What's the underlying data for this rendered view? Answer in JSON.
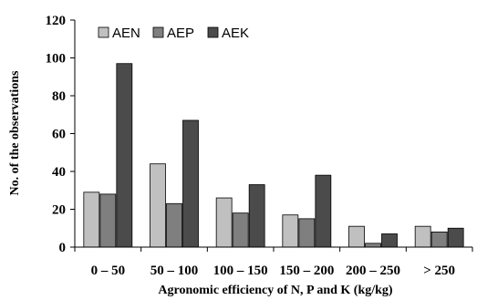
{
  "chart_data": {
    "type": "bar",
    "categories": [
      "0 – 50",
      "50 – 100",
      "100 – 150",
      "150 – 200",
      "200 – 250",
      "> 250"
    ],
    "series": [
      {
        "name": "AEN",
        "values": [
          29,
          44,
          26,
          17,
          11,
          11
        ],
        "color": "#c0c0c0"
      },
      {
        "name": "AEP",
        "values": [
          28,
          23,
          18,
          15,
          2,
          8
        ],
        "color": "#7f7f7f"
      },
      {
        "name": "AEK",
        "values": [
          97,
          67,
          33,
          38,
          7,
          10
        ],
        "color": "#4b4b4b"
      }
    ],
    "title": "",
    "xlabel": "Agronomic efficiency of N, P and K (kg/kg)",
    "ylabel": "No. of the observations",
    "ylim": [
      0,
      120
    ],
    "yticks": [
      0,
      20,
      40,
      60,
      80,
      100,
      120
    ],
    "grid": false,
    "legend_position": "top-left"
  }
}
